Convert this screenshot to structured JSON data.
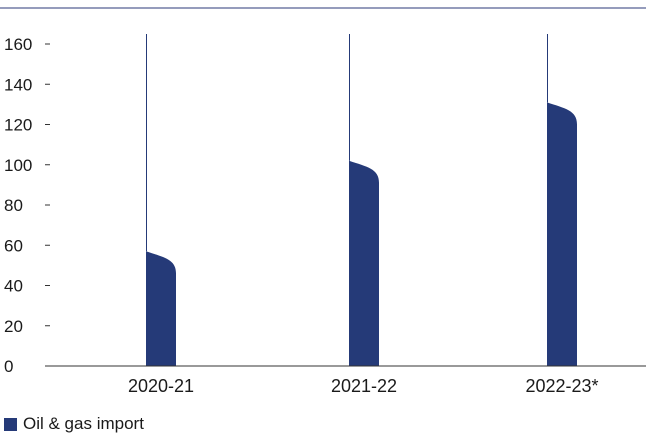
{
  "chart_data": {
    "type": "bar",
    "categories": [
      "2020-21",
      "2021-22",
      "2022-23*"
    ],
    "series": [
      {
        "name": "Oil & gas import",
        "values": [
          57,
          102,
          131
        ]
      }
    ],
    "ylim": [
      0,
      165
    ],
    "yticks": [
      0,
      20,
      40,
      60,
      80,
      100,
      120,
      140,
      160
    ],
    "legend_position": "bottom-left",
    "grid": false,
    "colors": {
      "bar": "#253a78",
      "axis": "#333333",
      "top_rule": "#2b3a7a"
    }
  }
}
